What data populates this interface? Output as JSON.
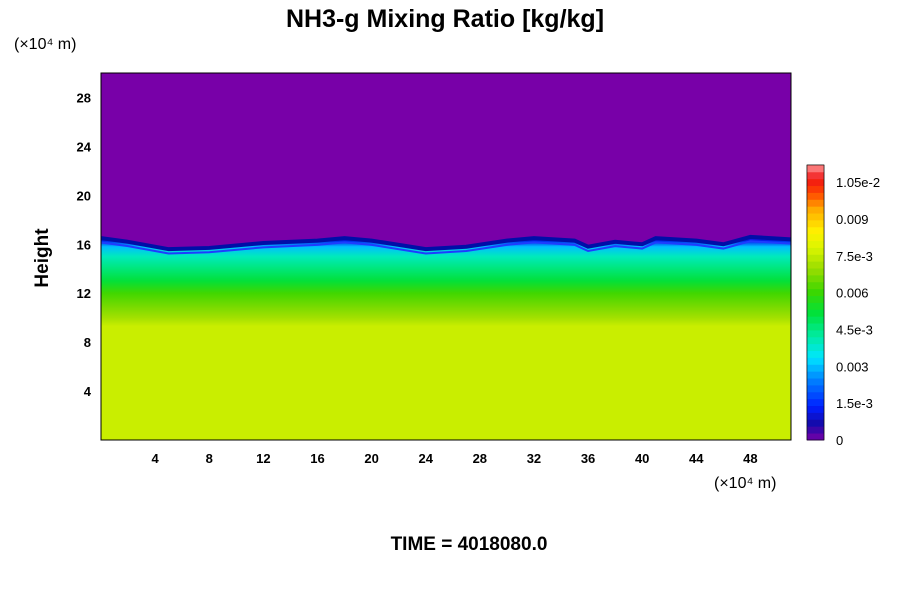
{
  "chart_data": {
    "type": "heatmap",
    "title": "NH3-g Mixing Ratio [kg/kg]",
    "ylabel": "Height",
    "x_unit": "(×10⁴ m)",
    "y_unit": "(×10⁴ m)",
    "footer": "TIME = 4018080.0",
    "xlim": [
      0,
      51
    ],
    "ylim": [
      0,
      30
    ],
    "x_ticks": [
      4,
      8,
      12,
      16,
      20,
      24,
      28,
      32,
      36,
      40,
      44,
      48
    ],
    "y_ticks": [
      4,
      8,
      12,
      16,
      20,
      24,
      28
    ],
    "colorbar": {
      "min": 0,
      "max": 0.0112,
      "ticks": [
        {
          "value": 0,
          "label": "0"
        },
        {
          "value": 0.0015,
          "label": "1.5e-3"
        },
        {
          "value": 0.003,
          "label": "0.003"
        },
        {
          "value": 0.0045,
          "label": "4.5e-3"
        },
        {
          "value": 0.006,
          "label": "0.006"
        },
        {
          "value": 0.0075,
          "label": "7.5e-3"
        },
        {
          "value": 0.009,
          "label": "0.009"
        },
        {
          "value": 0.0105,
          "label": "1.05e-2"
        }
      ]
    },
    "field_profile": [
      {
        "height": 0,
        "value": 0.0076
      },
      {
        "height": 9.3,
        "value": 0.0076
      },
      {
        "height": 10.0,
        "value": 0.0071
      },
      {
        "height": 11.0,
        "value": 0.0066
      },
      {
        "height": 12.0,
        "value": 0.0061
      },
      {
        "height": 13.0,
        "value": 0.0052
      },
      {
        "height": 14.0,
        "value": 0.0046
      },
      {
        "height": 15.0,
        "value": 0.004
      },
      {
        "height": 15.8,
        "value": 0.003
      },
      {
        "height": 16.3,
        "value": 0.0012
      },
      {
        "height": 17.0,
        "value": 0.0
      },
      {
        "height": 30,
        "value": 0.0
      }
    ],
    "top_boundary": [
      {
        "x": 0,
        "height": 16.5
      },
      {
        "x": 2,
        "height": 16.2
      },
      {
        "x": 5,
        "height": 15.6
      },
      {
        "x": 8,
        "height": 15.7
      },
      {
        "x": 12,
        "height": 16.1
      },
      {
        "x": 16,
        "height": 16.3
      },
      {
        "x": 18,
        "height": 16.5
      },
      {
        "x": 20,
        "height": 16.3
      },
      {
        "x": 24,
        "height": 15.6
      },
      {
        "x": 27,
        "height": 15.8
      },
      {
        "x": 30,
        "height": 16.3
      },
      {
        "x": 32,
        "height": 16.5
      },
      {
        "x": 35,
        "height": 16.3
      },
      {
        "x": 36,
        "height": 15.8
      },
      {
        "x": 38,
        "height": 16.2
      },
      {
        "x": 40,
        "height": 16.0
      },
      {
        "x": 41,
        "height": 16.5
      },
      {
        "x": 44,
        "height": 16.3
      },
      {
        "x": 46,
        "height": 16.0
      },
      {
        "x": 48,
        "height": 16.6
      },
      {
        "x": 51,
        "height": 16.4
      }
    ]
  }
}
